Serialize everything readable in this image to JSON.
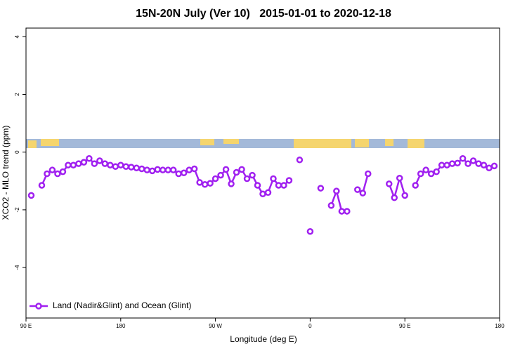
{
  "chart_data": {
    "type": "line",
    "title": "15N-20N July (Ver 10)   2015-01-01 to 2020-12-18",
    "x_label": "Longitude (deg E)",
    "y_label": "XCO2 - MLO trend (ppm)",
    "xlim": [
      90,
      540
    ],
    "ylim": [
      -5.75,
      4.3
    ],
    "xticks": [
      {
        "value": 90,
        "label": "90 E"
      },
      180,
      {
        "value": 270,
        "label": "90 W"
      },
      {
        "value": 360,
        "label": "0"
      },
      {
        "value": 450,
        "label": "90 E"
      },
      {
        "value": 540,
        "label": "180"
      }
    ],
    "yticks": [
      -4,
      -2,
      0,
      2,
      4
    ],
    "legend": "bottom-left",
    "x": [
      95,
      100,
      105,
      110,
      115,
      120,
      125,
      130,
      135,
      140,
      145,
      150,
      155,
      160,
      165,
      170,
      175,
      180,
      185,
      190,
      195,
      200,
      205,
      210,
      215,
      220,
      225,
      230,
      235,
      240,
      245,
      250,
      255,
      260,
      265,
      270,
      275,
      280,
      285,
      290,
      295,
      300,
      305,
      310,
      315,
      320,
      325,
      330,
      335,
      340,
      345,
      350,
      355,
      360,
      365,
      370,
      375,
      380,
      385,
      390,
      395,
      400,
      405,
      410,
      415,
      420,
      425,
      430,
      435,
      440,
      445,
      450,
      455,
      460,
      465,
      470,
      475,
      480,
      485,
      490,
      495,
      500,
      505,
      510,
      515,
      520,
      525,
      530,
      535
    ],
    "series": [
      {
        "name": "Land (Nadir&Glint) and Ocean (Glint)",
        "color": "#a020f0",
        "values": [
          -1.5,
          null,
          -1.15,
          -0.75,
          -0.62,
          -0.75,
          -0.68,
          -0.45,
          -0.45,
          -0.4,
          -0.35,
          -0.22,
          -0.4,
          -0.3,
          -0.4,
          -0.45,
          -0.5,
          -0.45,
          -0.5,
          -0.52,
          -0.55,
          -0.58,
          -0.62,
          -0.65,
          -0.6,
          -0.62,
          -0.62,
          -0.62,
          -0.75,
          -0.72,
          -0.62,
          -0.58,
          -1.05,
          -1.12,
          -1.08,
          -0.92,
          -0.8,
          -0.6,
          -1.1,
          -0.7,
          -0.6,
          -0.92,
          -0.8,
          -1.15,
          -1.45,
          -1.4,
          -0.92,
          -1.15,
          -1.15,
          -0.98,
          null,
          -0.27,
          null,
          -2.75,
          null,
          -1.25,
          null,
          -1.85,
          -1.35,
          -2.05,
          -2.05,
          null,
          -1.3,
          -1.42,
          -0.75,
          null,
          null,
          null,
          -1.1,
          -1.58,
          -0.9,
          -1.5,
          null,
          -1.15,
          -0.75,
          -0.62,
          -0.75,
          -0.68,
          -0.45,
          -0.45,
          -0.4,
          -0.38,
          -0.22,
          -0.4,
          -0.3,
          -0.4,
          -0.45,
          -0.55,
          -0.48
        ]
      }
    ]
  }
}
